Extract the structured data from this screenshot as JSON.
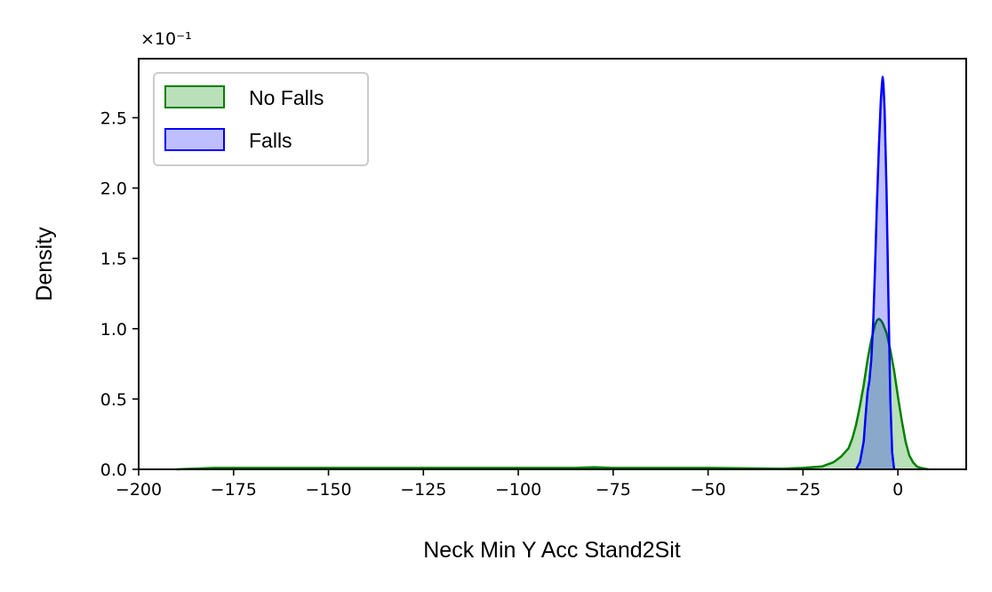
{
  "chart_data": {
    "type": "area",
    "subtype": "kde-density",
    "xlabel": "Neck Min Y Acc Stand2Sit",
    "ylabel": "Density",
    "y_offset_label": "×10⁻¹",
    "xlim": [
      -200,
      18
    ],
    "ylim": [
      0,
      2.92
    ],
    "x_ticks": [
      -200,
      -175,
      -150,
      -125,
      -100,
      -75,
      -50,
      -25,
      0
    ],
    "x_tick_labels": [
      "−200",
      "−175",
      "−150",
      "−125",
      "−100",
      "−75",
      "−50",
      "−25",
      "0"
    ],
    "y_ticks": [
      0,
      0.5,
      1.0,
      1.5,
      2.0,
      2.5
    ],
    "y_tick_labels": [
      "0.0",
      "0.5",
      "1.0",
      "1.5",
      "2.0",
      "2.5"
    ],
    "grid": false,
    "legend_position": "top-left",
    "series": [
      {
        "name": "No Falls",
        "line_color": "#008000",
        "fill_color": "#b9e0b9",
        "x": [
          -190,
          -180,
          -150,
          -120,
          -100,
          -85,
          -80,
          -75,
          -65,
          -50,
          -30,
          -25,
          -20,
          -17,
          -15,
          -13,
          -12,
          -11,
          -10,
          -9,
          -8,
          -7,
          -6,
          -5.5,
          -5,
          -4.5,
          -4,
          -3,
          -2,
          -1,
          0,
          1,
          2,
          3,
          4,
          5,
          6,
          7,
          8
        ],
        "y": [
          0.0,
          0.01,
          0.01,
          0.01,
          0.01,
          0.01,
          0.015,
          0.01,
          0.01,
          0.01,
          0.005,
          0.01,
          0.02,
          0.05,
          0.09,
          0.15,
          0.22,
          0.32,
          0.45,
          0.6,
          0.78,
          0.92,
          1.03,
          1.06,
          1.07,
          1.06,
          1.04,
          0.97,
          0.85,
          0.7,
          0.52,
          0.35,
          0.2,
          0.1,
          0.05,
          0.02,
          0.01,
          0.005,
          0.0
        ]
      },
      {
        "name": "Falls",
        "line_color": "#0000ff",
        "fill_color": "rgba(0,0,255,0.25)",
        "x": [
          -11,
          -10,
          -9,
          -8.5,
          -8,
          -7.5,
          -7,
          -6.5,
          -6,
          -5.5,
          -5,
          -4.5,
          -4.2,
          -4,
          -3.8,
          -3.5,
          -3,
          -2.5,
          -2,
          -1.5,
          -1
        ],
        "y": [
          0.0,
          0.05,
          0.2,
          0.38,
          0.55,
          0.63,
          0.78,
          1.05,
          1.45,
          1.9,
          2.3,
          2.62,
          2.74,
          2.79,
          2.74,
          2.55,
          2.0,
          1.2,
          0.5,
          0.12,
          0.0
        ]
      }
    ]
  }
}
